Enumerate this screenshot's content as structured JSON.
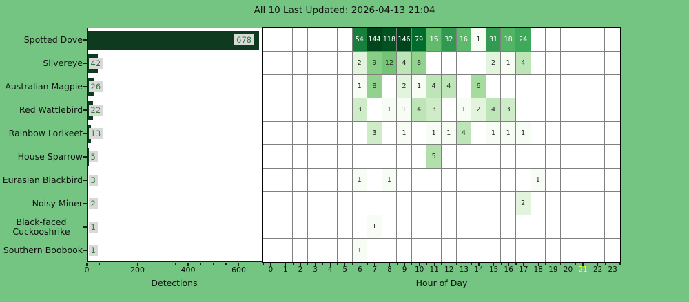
{
  "title": "All 10 Last Updated: 2026-04-13 21:04",
  "colors": {
    "background": "#74c482",
    "bar_fill": "#0e3b1f",
    "value_box_bg": "#d9d9d9",
    "value_box_text": "#2e7d32",
    "gridline": "#808080",
    "heatmap_border": "#050505",
    "axis_text": "#111111",
    "current_hour_text": "#ffff00",
    "cell_text_light": "#ffffff",
    "cell_text_dark": "#262626",
    "greens_cmap": [
      "#f7fcf5",
      "#e5f5e0",
      "#c7e9c0",
      "#a1d99b",
      "#74c476",
      "#41ab5d",
      "#238b45",
      "#006d2c",
      "#00441b"
    ]
  },
  "chart_data": [
    {
      "type": "bar",
      "orientation": "horizontal",
      "xlabel": "Detections",
      "xticks": [
        0,
        200,
        400,
        600
      ],
      "minor_xticks": [
        50,
        100,
        150,
        250,
        300,
        350,
        450,
        500,
        550,
        650
      ],
      "xlim": [
        0,
        694
      ],
      "categories": [
        "Spotted Dove",
        "Silvereye",
        "Australian Magpie",
        "Red Wattlebird",
        "Rainbow Lorikeet",
        "House Sparrow",
        "Eurasian Blackbird",
        "Noisy Miner",
        "Black-faced Cuckooshrike",
        "Southern Boobook"
      ],
      "values": [
        678,
        42,
        26,
        22,
        13,
        5,
        3,
        2,
        1,
        1
      ]
    },
    {
      "type": "heatmap",
      "xlabel": "Hour of Day",
      "hours": [
        0,
        1,
        2,
        3,
        4,
        5,
        6,
        7,
        8,
        9,
        10,
        11,
        12,
        13,
        14,
        15,
        16,
        17,
        18,
        19,
        20,
        21,
        22,
        23
      ],
      "current_hour": 21,
      "colormap": "Greens",
      "norm": "log",
      "vmin": 1,
      "vmax": 146,
      "rows": [
        {
          "species": "Spotted Dove",
          "cells": {
            "6": 54,
            "7": 144,
            "8": 118,
            "9": 146,
            "10": 79,
            "11": 15,
            "12": 32,
            "13": 16,
            "14": 1,
            "15": 31,
            "16": 18,
            "17": 24
          }
        },
        {
          "species": "Silvereye",
          "cells": {
            "6": 2,
            "7": 9,
            "8": 12,
            "9": 4,
            "10": 8,
            "15": 2,
            "16": 1,
            "17": 4
          }
        },
        {
          "species": "Australian Magpie",
          "cells": {
            "6": 1,
            "7": 8,
            "9": 2,
            "10": 1,
            "11": 4,
            "12": 4,
            "14": 6
          }
        },
        {
          "species": "Red Wattlebird",
          "cells": {
            "6": 3,
            "8": 1,
            "9": 1,
            "10": 4,
            "11": 3,
            "13": 1,
            "14": 2,
            "15": 4,
            "16": 3
          }
        },
        {
          "species": "Rainbow Lorikeet",
          "cells": {
            "7": 3,
            "9": 1,
            "11": 1,
            "12": 1,
            "13": 4,
            "15": 1,
            "16": 1,
            "17": 1
          }
        },
        {
          "species": "House Sparrow",
          "cells": {
            "11": 5
          }
        },
        {
          "species": "Eurasian Blackbird",
          "cells": {
            "6": 1,
            "8": 1,
            "18": 1
          }
        },
        {
          "species": "Noisy Miner",
          "cells": {
            "17": 2
          }
        },
        {
          "species": "Black-faced Cuckooshrike",
          "cells": {
            "7": 1
          }
        },
        {
          "species": "Southern Boobook",
          "cells": {
            "6": 1
          }
        }
      ]
    }
  ]
}
